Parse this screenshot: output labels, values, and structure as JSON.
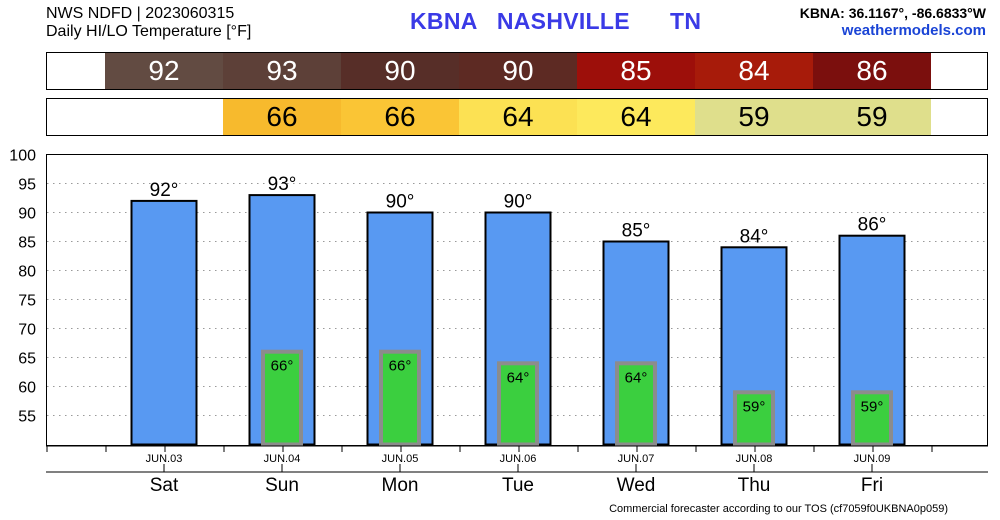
{
  "header": {
    "line1": "NWS NDFD | 2023060315",
    "line2": "Daily HI/LO Temperature [°F]",
    "station": "KBNA   NASHVILLE      TN",
    "coords": "KBNA: 36.1167°, -86.6833°W",
    "site": "weathermodels.com"
  },
  "footer": "Commercial forecaster according to our TOS (cf7059f0UKBNA0p059)",
  "colors": {
    "high_bar": "#5899f2",
    "low_bar": "#3bcf3f",
    "low_bar_border": "#8c8c8c",
    "hi_strip": [
      "#624b42",
      "#5d4038",
      "#572e28",
      "#5d2a23",
      "#9d0f0a",
      "#a71b0a",
      "#7b0f0d"
    ],
    "lo_strip": [
      null,
      "#f7ba2d",
      "#fac535",
      "#fce153",
      "#fde95c",
      "#dfdf8c",
      "#dfdf8c"
    ]
  },
  "chart_data": {
    "type": "bar",
    "categories": [
      "Sat",
      "Sun",
      "Mon",
      "Tue",
      "Wed",
      "Thu",
      "Fri"
    ],
    "dates": [
      "JUN.03",
      "JUN.04",
      "JUN.05",
      "JUN.06",
      "JUN.07",
      "JUN.08",
      "JUN.09"
    ],
    "series": [
      {
        "values": [
          92,
          93,
          90,
          90,
          85,
          84,
          86
        ]
      },
      {
        "values": [
          null,
          66,
          66,
          64,
          64,
          59,
          59
        ]
      }
    ],
    "hi_labels": [
      "92°",
      "93°",
      "90°",
      "90°",
      "85°",
      "84°",
      "86°"
    ],
    "lo_labels": [
      "",
      "66°",
      "66°",
      "64°",
      "64°",
      "59°",
      "59°"
    ],
    "hi_strip": [
      "92",
      "93",
      "90",
      "90",
      "85",
      "84",
      "86"
    ],
    "lo_strip": [
      "",
      "66",
      "66",
      "64",
      "64",
      "59",
      "59"
    ],
    "ylim": [
      50,
      100
    ],
    "yticks": [
      "100",
      "95",
      "90",
      "85",
      "80",
      "75",
      "70",
      "65",
      "60",
      "55"
    ],
    "grid": true
  }
}
